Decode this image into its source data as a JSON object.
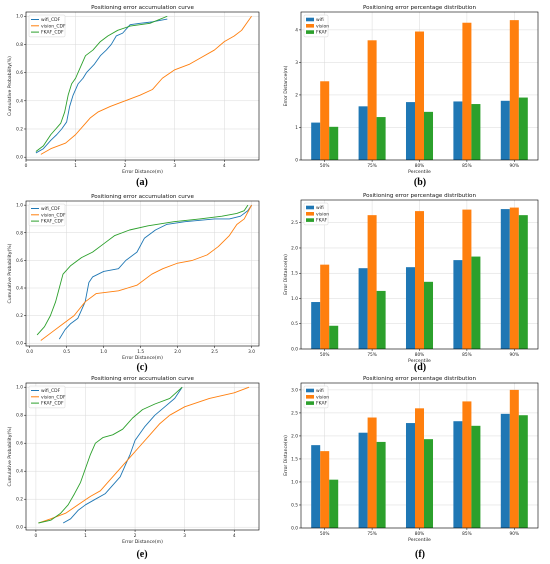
{
  "colors": {
    "wifi": "#1f77b4",
    "vision": "#ff7f0e",
    "fkaf": "#2ca02c",
    "grid": "#d9d9d9",
    "axis": "#000000"
  },
  "chart_data": [
    {
      "type": "line",
      "panel_label": "(a)",
      "title": "Positioning error accumulation curve",
      "xlabel": "Error Distance(m)",
      "ylabel": "Cumulative Probability(%)",
      "xlim": [
        0,
        4.7
      ],
      "ylim": [
        -0.02,
        1.03
      ],
      "xticks": [
        0,
        1,
        2,
        3,
        4
      ],
      "yticks": [
        0.0,
        0.2,
        0.4,
        0.6,
        0.8,
        1.0
      ],
      "grid": true,
      "legend_position": "top-left",
      "series": [
        {
          "name": "wifi_CDF",
          "key": "wifi",
          "points": [
            [
              0.2,
              0.03
            ],
            [
              0.35,
              0.06
            ],
            [
              0.5,
              0.12
            ],
            [
              0.62,
              0.16
            ],
            [
              0.72,
              0.2
            ],
            [
              0.82,
              0.25
            ],
            [
              0.88,
              0.36
            ],
            [
              0.95,
              0.44
            ],
            [
              1.05,
              0.52
            ],
            [
              1.15,
              0.56
            ],
            [
              1.22,
              0.6
            ],
            [
              1.38,
              0.66
            ],
            [
              1.5,
              0.72
            ],
            [
              1.62,
              0.76
            ],
            [
              1.72,
              0.8
            ],
            [
              1.82,
              0.86
            ],
            [
              1.95,
              0.88
            ],
            [
              2.1,
              0.94
            ],
            [
              2.3,
              0.95
            ],
            [
              2.55,
              0.96
            ],
            [
              2.85,
              0.98
            ]
          ]
        },
        {
          "name": "vision_CDF",
          "key": "vision",
          "points": [
            [
              0.3,
              0.02
            ],
            [
              0.5,
              0.06
            ],
            [
              0.8,
              0.1
            ],
            [
              1.0,
              0.16
            ],
            [
              1.15,
              0.22
            ],
            [
              1.3,
              0.28
            ],
            [
              1.45,
              0.32
            ],
            [
              1.7,
              0.36
            ],
            [
              2.0,
              0.4
            ],
            [
              2.3,
              0.44
            ],
            [
              2.55,
              0.48
            ],
            [
              2.75,
              0.56
            ],
            [
              3.0,
              0.62
            ],
            [
              3.3,
              0.66
            ],
            [
              3.5,
              0.7
            ],
            [
              3.8,
              0.76
            ],
            [
              4.0,
              0.82
            ],
            [
              4.2,
              0.86
            ],
            [
              4.35,
              0.9
            ],
            [
              4.45,
              0.95
            ],
            [
              4.55,
              1.0
            ]
          ]
        },
        {
          "name": "FKAF_CDF",
          "key": "fkaf",
          "points": [
            [
              0.2,
              0.04
            ],
            [
              0.35,
              0.08
            ],
            [
              0.5,
              0.16
            ],
            [
              0.6,
              0.2
            ],
            [
              0.7,
              0.24
            ],
            [
              0.78,
              0.32
            ],
            [
              0.85,
              0.44
            ],
            [
              0.92,
              0.52
            ],
            [
              1.0,
              0.56
            ],
            [
              1.1,
              0.64
            ],
            [
              1.2,
              0.72
            ],
            [
              1.35,
              0.76
            ],
            [
              1.5,
              0.82
            ],
            [
              1.65,
              0.86
            ],
            [
              1.85,
              0.9
            ],
            [
              2.1,
              0.93
            ],
            [
              2.5,
              0.95
            ],
            [
              2.85,
              1.0
            ]
          ]
        }
      ]
    },
    {
      "type": "bar",
      "panel_label": "(b)",
      "title": "Positioning error percentage distribution",
      "xlabel": "Percentile",
      "ylabel": "Error Distance(m)",
      "ylim": [
        0,
        4.55
      ],
      "yticks": [
        0,
        1,
        2,
        3,
        4
      ],
      "grid": true,
      "legend_position": "top-left",
      "categories": [
        "50%",
        "75%",
        "80%",
        "85%",
        "90%"
      ],
      "series": [
        {
          "name": "wifi",
          "key": "wifi",
          "values": [
            1.15,
            1.65,
            1.78,
            1.8,
            1.82
          ]
        },
        {
          "name": "vision",
          "key": "vision",
          "values": [
            2.42,
            3.68,
            3.95,
            4.22,
            4.3
          ]
        },
        {
          "name": "FKAF",
          "key": "fkaf",
          "values": [
            1.02,
            1.32,
            1.48,
            1.72,
            1.92
          ]
        }
      ]
    },
    {
      "type": "line",
      "panel_label": "(c)",
      "title": "Positioning error accumulation curve",
      "xlabel": "Error Distance(m)",
      "ylabel": "Cumulative Probability(%)",
      "xlim": [
        -0.05,
        3.1
      ],
      "ylim": [
        -0.02,
        1.03
      ],
      "xticks": [
        0.0,
        0.5,
        1.0,
        1.5,
        2.0,
        2.5,
        3.0
      ],
      "yticks": [
        0.0,
        0.2,
        0.4,
        0.6,
        0.8,
        1.0
      ],
      "grid": true,
      "legend_position": "top-left",
      "series": [
        {
          "name": "wifi_CDF",
          "key": "wifi",
          "points": [
            [
              0.4,
              0.03
            ],
            [
              0.48,
              0.1
            ],
            [
              0.55,
              0.14
            ],
            [
              0.65,
              0.18
            ],
            [
              0.75,
              0.3
            ],
            [
              0.8,
              0.44
            ],
            [
              0.85,
              0.48
            ],
            [
              1.0,
              0.52
            ],
            [
              1.2,
              0.54
            ],
            [
              1.3,
              0.6
            ],
            [
              1.45,
              0.66
            ],
            [
              1.55,
              0.76
            ],
            [
              1.7,
              0.82
            ],
            [
              1.85,
              0.86
            ],
            [
              2.1,
              0.88
            ],
            [
              2.5,
              0.9
            ],
            [
              2.7,
              0.9
            ],
            [
              2.85,
              0.92
            ],
            [
              2.95,
              0.96
            ],
            [
              3.0,
              1.0
            ]
          ]
        },
        {
          "name": "vision_CDF",
          "key": "vision",
          "points": [
            [
              0.15,
              0.02
            ],
            [
              0.3,
              0.08
            ],
            [
              0.45,
              0.14
            ],
            [
              0.6,
              0.2
            ],
            [
              0.75,
              0.3
            ],
            [
              0.9,
              0.36
            ],
            [
              1.2,
              0.38
            ],
            [
              1.45,
              0.42
            ],
            [
              1.65,
              0.5
            ],
            [
              1.8,
              0.54
            ],
            [
              2.0,
              0.58
            ],
            [
              2.2,
              0.6
            ],
            [
              2.4,
              0.64
            ],
            [
              2.55,
              0.7
            ],
            [
              2.7,
              0.78
            ],
            [
              2.8,
              0.86
            ],
            [
              2.9,
              0.9
            ],
            [
              3.0,
              1.0
            ]
          ]
        },
        {
          "name": "FKAF_CDF",
          "key": "fkaf",
          "points": [
            [
              0.1,
              0.06
            ],
            [
              0.2,
              0.12
            ],
            [
              0.28,
              0.2
            ],
            [
              0.35,
              0.3
            ],
            [
              0.4,
              0.4
            ],
            [
              0.45,
              0.5
            ],
            [
              0.55,
              0.56
            ],
            [
              0.7,
              0.62
            ],
            [
              0.85,
              0.66
            ],
            [
              1.0,
              0.72
            ],
            [
              1.15,
              0.78
            ],
            [
              1.35,
              0.82
            ],
            [
              1.6,
              0.85
            ],
            [
              1.95,
              0.88
            ],
            [
              2.3,
              0.9
            ],
            [
              2.6,
              0.92
            ],
            [
              2.8,
              0.94
            ],
            [
              2.9,
              0.96
            ],
            [
              2.95,
              1.0
            ]
          ]
        }
      ]
    },
    {
      "type": "bar",
      "panel_label": "(d)",
      "title": "Positioning error percentage distribution",
      "xlabel": "Percentile",
      "ylabel": "Error Distance(m)",
      "ylim": [
        0,
        2.95
      ],
      "yticks": [
        0.0,
        0.5,
        1.0,
        1.5,
        2.0,
        2.5
      ],
      "grid": true,
      "legend_position": "top-left",
      "categories": [
        "50%",
        "75%",
        "80%",
        "85%",
        "90%"
      ],
      "series": [
        {
          "name": "wifi",
          "key": "wifi",
          "values": [
            0.93,
            1.6,
            1.62,
            1.76,
            2.77
          ]
        },
        {
          "name": "vision",
          "key": "vision",
          "values": [
            1.67,
            2.65,
            2.73,
            2.76,
            2.8
          ]
        },
        {
          "name": "FKAF",
          "key": "fkaf",
          "values": [
            0.46,
            1.15,
            1.33,
            1.83,
            2.65
          ]
        }
      ]
    },
    {
      "type": "line",
      "panel_label": "(e)",
      "title": "Positioning error accumulation curve",
      "xlabel": "Error Distance(m)",
      "ylabel": "Cumulative Probability(%)",
      "xlim": [
        -0.2,
        4.5
      ],
      "ylim": [
        -0.02,
        1.03
      ],
      "xticks": [
        0,
        1,
        2,
        3,
        4
      ],
      "yticks": [
        0.0,
        0.2,
        0.4,
        0.6,
        0.8,
        1.0
      ],
      "grid": true,
      "legend_position": "top-left",
      "series": [
        {
          "name": "wifi_CDF",
          "key": "wifi",
          "points": [
            [
              0.55,
              0.03
            ],
            [
              0.7,
              0.06
            ],
            [
              0.85,
              0.12
            ],
            [
              1.0,
              0.16
            ],
            [
              1.2,
              0.2
            ],
            [
              1.4,
              0.24
            ],
            [
              1.55,
              0.3
            ],
            [
              1.7,
              0.36
            ],
            [
              1.8,
              0.44
            ],
            [
              1.9,
              0.52
            ],
            [
              2.0,
              0.62
            ],
            [
              2.2,
              0.72
            ],
            [
              2.4,
              0.8
            ],
            [
              2.6,
              0.86
            ],
            [
              2.8,
              0.92
            ],
            [
              2.95,
              1.0
            ]
          ]
        },
        {
          "name": "vision_CDF",
          "key": "vision",
          "points": [
            [
              0.05,
              0.03
            ],
            [
              0.3,
              0.06
            ],
            [
              0.6,
              0.1
            ],
            [
              0.85,
              0.16
            ],
            [
              1.1,
              0.22
            ],
            [
              1.3,
              0.26
            ],
            [
              1.5,
              0.34
            ],
            [
              1.7,
              0.42
            ],
            [
              1.9,
              0.5
            ],
            [
              2.1,
              0.58
            ],
            [
              2.3,
              0.66
            ],
            [
              2.5,
              0.74
            ],
            [
              2.7,
              0.8
            ],
            [
              3.0,
              0.86
            ],
            [
              3.5,
              0.92
            ],
            [
              4.0,
              0.96
            ],
            [
              4.3,
              1.0
            ]
          ]
        },
        {
          "name": "FKAF_CDF",
          "key": "fkaf",
          "points": [
            [
              0.05,
              0.03
            ],
            [
              0.3,
              0.05
            ],
            [
              0.5,
              0.1
            ],
            [
              0.65,
              0.16
            ],
            [
              0.78,
              0.24
            ],
            [
              0.9,
              0.32
            ],
            [
              1.0,
              0.42
            ],
            [
              1.1,
              0.52
            ],
            [
              1.2,
              0.6
            ],
            [
              1.35,
              0.64
            ],
            [
              1.55,
              0.66
            ],
            [
              1.75,
              0.7
            ],
            [
              1.95,
              0.78
            ],
            [
              2.15,
              0.84
            ],
            [
              2.4,
              0.88
            ],
            [
              2.7,
              0.92
            ],
            [
              2.95,
              1.0
            ]
          ]
        }
      ]
    },
    {
      "type": "bar",
      "panel_label": "(f)",
      "title": "Positioning error percentage distribution",
      "xlabel": "Percentile",
      "ylabel": "Error Distance(m)",
      "ylim": [
        0,
        3.15
      ],
      "yticks": [
        0.0,
        0.5,
        1.0,
        1.5,
        2.0,
        2.5,
        3.0
      ],
      "grid": true,
      "legend_position": "top-left",
      "categories": [
        "50%",
        "75%",
        "80%",
        "85%",
        "90%"
      ],
      "series": [
        {
          "name": "wifi",
          "key": "wifi",
          "values": [
            1.8,
            2.07,
            2.28,
            2.32,
            2.48
          ]
        },
        {
          "name": "vision",
          "key": "vision",
          "values": [
            1.67,
            2.4,
            2.6,
            2.75,
            3.0
          ]
        },
        {
          "name": "FKAF",
          "key": "fkaf",
          "values": [
            1.05,
            1.87,
            1.93,
            2.22,
            2.45
          ]
        }
      ]
    }
  ]
}
